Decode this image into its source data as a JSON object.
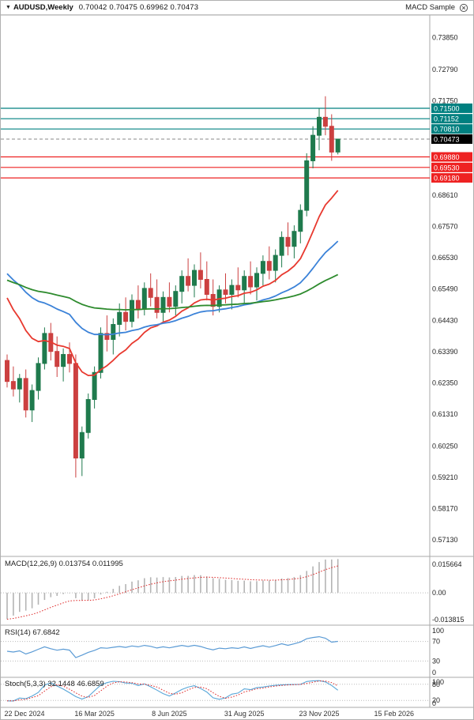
{
  "topbar": {
    "symbol_period": "AUDUSD,Weekly",
    "ohlc": "0.70042 0.70475 0.69962 0.70473",
    "indicator_name": "MACD Sample"
  },
  "colors": {
    "bull": "#1f7a4d",
    "bear": "#cc4040",
    "line_teal": "#008080",
    "line_red": "#ee2222",
    "current_price_box": "#000000",
    "current_price_line": "#888888",
    "ma_fast": "#e8392f",
    "ma_mid": "#3b82d8",
    "ma_slow": "#2e8b2e",
    "macd_hist": "#b4b4b4",
    "macd_signal": "#dd2222",
    "rsi_line": "#5b9bd5",
    "stoch_main": "#58a6d8",
    "stoch_signal": "#dd2222",
    "level_dotted": "#bbbbbb",
    "axis_text": "#222222",
    "panel_border": "#aaaaaa"
  },
  "chart_data": {
    "type": "candlestick",
    "symbol": "AUDUSD",
    "timeframe": "Weekly",
    "ohlc_display": {
      "open": "0.70042",
      "high": "0.70475",
      "low": "0.69962",
      "close": "0.70473"
    },
    "current_price": 0.70473,
    "price_axis_ticks": [
      0.7385,
      0.7279,
      0.7175,
      0.6861,
      0.6757,
      0.6653,
      0.6549,
      0.6443,
      0.6339,
      0.6235,
      0.6131,
      0.6025,
      0.5921,
      0.5817,
      0.5713
    ],
    "horizontal_lines": [
      {
        "price": 0.715,
        "color": "#008080"
      },
      {
        "price": 0.71152,
        "color": "#008080"
      },
      {
        "price": 0.7081,
        "color": "#008080"
      },
      {
        "price": 0.6988,
        "color": "#ee2222"
      },
      {
        "price": 0.6953,
        "color": "#ee2222"
      },
      {
        "price": 0.6918,
        "color": "#ee2222"
      }
    ],
    "x_axis_labels": [
      {
        "text": "22 Dec 2024",
        "bar": 2
      },
      {
        "text": "16 Mar 2025",
        "bar": 14
      },
      {
        "text": "8 Jun 2025",
        "bar": 26
      },
      {
        "text": "31 Aug 2025",
        "bar": 38
      },
      {
        "text": "23 Nov 2025",
        "bar": 50
      },
      {
        "text": "15 Feb 2026",
        "bar": 62
      }
    ],
    "candles": [
      [
        0.631,
        0.633,
        0.622,
        0.624
      ],
      [
        0.624,
        0.629,
        0.619,
        0.6215
      ],
      [
        0.6215,
        0.6265,
        0.617,
        0.625
      ],
      [
        0.625,
        0.628,
        0.612,
        0.6145
      ],
      [
        0.6145,
        0.623,
        0.6105,
        0.621
      ],
      [
        0.621,
        0.632,
        0.618,
        0.63
      ],
      [
        0.63,
        0.642,
        0.628,
        0.64
      ],
      [
        0.64,
        0.6435,
        0.631,
        0.634
      ],
      [
        0.634,
        0.639,
        0.6255,
        0.629
      ],
      [
        0.629,
        0.635,
        0.624,
        0.633
      ],
      [
        0.633,
        0.637,
        0.627,
        0.63
      ],
      [
        0.63,
        0.633,
        0.592,
        0.5985
      ],
      [
        0.5985,
        0.609,
        0.5925,
        0.607
      ],
      [
        0.607,
        0.62,
        0.605,
        0.618
      ],
      [
        0.618,
        0.629,
        0.615,
        0.627
      ],
      [
        0.627,
        0.642,
        0.625,
        0.64
      ],
      [
        0.64,
        0.646,
        0.634,
        0.638
      ],
      [
        0.638,
        0.645,
        0.633,
        0.643
      ],
      [
        0.643,
        0.65,
        0.639,
        0.647
      ],
      [
        0.647,
        0.652,
        0.641,
        0.644
      ],
      [
        0.644,
        0.653,
        0.642,
        0.651
      ],
      [
        0.651,
        0.656,
        0.645,
        0.648
      ],
      [
        0.648,
        0.657,
        0.646,
        0.655
      ],
      [
        0.655,
        0.66,
        0.649,
        0.652
      ],
      [
        0.652,
        0.658,
        0.645,
        0.647
      ],
      [
        0.647,
        0.654,
        0.644,
        0.652
      ],
      [
        0.652,
        0.657,
        0.647,
        0.649
      ],
      [
        0.649,
        0.656,
        0.646,
        0.654
      ],
      [
        0.654,
        0.661,
        0.65,
        0.659
      ],
      [
        0.659,
        0.665,
        0.654,
        0.656
      ],
      [
        0.656,
        0.663,
        0.652,
        0.661
      ],
      [
        0.661,
        0.667,
        0.655,
        0.658
      ],
      [
        0.658,
        0.664,
        0.651,
        0.653
      ],
      [
        0.653,
        0.658,
        0.646,
        0.649
      ],
      [
        0.649,
        0.656,
        0.647,
        0.6545
      ],
      [
        0.6545,
        0.66,
        0.65,
        0.653
      ],
      [
        0.653,
        0.658,
        0.648,
        0.656
      ],
      [
        0.656,
        0.662,
        0.652,
        0.6545
      ],
      [
        0.6545,
        0.661,
        0.65,
        0.659
      ],
      [
        0.659,
        0.664,
        0.653,
        0.6555
      ],
      [
        0.6555,
        0.662,
        0.651,
        0.66
      ],
      [
        0.66,
        0.666,
        0.656,
        0.664
      ],
      [
        0.664,
        0.669,
        0.658,
        0.661
      ],
      [
        0.661,
        0.668,
        0.657,
        0.666
      ],
      [
        0.666,
        0.674,
        0.662,
        0.672
      ],
      [
        0.672,
        0.677,
        0.666,
        0.669
      ],
      [
        0.669,
        0.676,
        0.665,
        0.674
      ],
      [
        0.674,
        0.683,
        0.67,
        0.681
      ],
      [
        0.681,
        0.7,
        0.679,
        0.6975
      ],
      [
        0.6975,
        0.709,
        0.695,
        0.706
      ],
      [
        0.706,
        0.715,
        0.701,
        0.712
      ],
      [
        0.712,
        0.719,
        0.706,
        0.709
      ],
      [
        0.709,
        0.713,
        0.6975,
        0.7004
      ],
      [
        0.70042,
        0.70475,
        0.69962,
        0.70473
      ]
    ],
    "moving_averages": [
      {
        "name": "fast-ma",
        "color": "#e8392f",
        "alpha": 0.13,
        "seed": 0.656
      },
      {
        "name": "mid-ma",
        "color": "#3b82d8",
        "alpha": 0.055,
        "seed": 0.662
      },
      {
        "name": "slow-ma",
        "color": "#2e8b2e",
        "alpha": 0.022,
        "seed": 0.6585
      }
    ],
    "indicators": {
      "macd": {
        "label": "MACD(12,26,9) 0.013754 0.011995",
        "fast": 12,
        "slow": 26,
        "signal": 9,
        "value_main": 0.013754,
        "value_signal": 0.011995,
        "scale_max": 0.015664,
        "scale_min": -0.013815,
        "axis_labels": [
          "0.015664",
          "0.00",
          "-0.013815"
        ]
      },
      "rsi": {
        "label": "RSI(14) 67.6842",
        "period": 14,
        "value": 67.6842,
        "levels": [
          70,
          30
        ],
        "axis_labels": [
          "100",
          "70",
          "30",
          "0"
        ]
      },
      "stoch": {
        "label": "Stoch(5,3,3) 32.1448 46.6859",
        "k": 5,
        "d": 3,
        "slowing": 3,
        "value_main": 32.1448,
        "value_signal": 46.6859,
        "levels": [
          80,
          20
        ],
        "axis_labels": [
          "100",
          "80",
          "20",
          "0"
        ]
      }
    }
  }
}
